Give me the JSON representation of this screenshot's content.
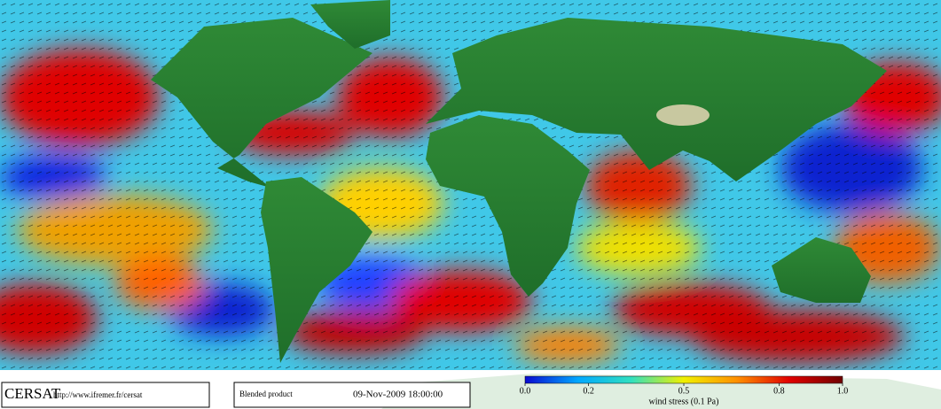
{
  "footer": {
    "logo": "CERSAT",
    "url": "http://www.ifremer.fr/cersat",
    "product": "Blended product",
    "datetime": "09-Nov-2009 18:00:00"
  },
  "colorbar": {
    "lim": [
      0,
      1
    ],
    "ticks": [
      {
        "value": 0,
        "label": "0.0"
      },
      0.2,
      0.5,
      0.8,
      {
        "value": 1,
        "label": "1.0"
      }
    ],
    "label": "wind stress (0.1 Pa)",
    "colors": [
      "#0a0ad0",
      "#00a8ff",
      "#30e0c0",
      "#f0f000",
      "#ff9000",
      "#e00000",
      "#700000"
    ]
  }
}
